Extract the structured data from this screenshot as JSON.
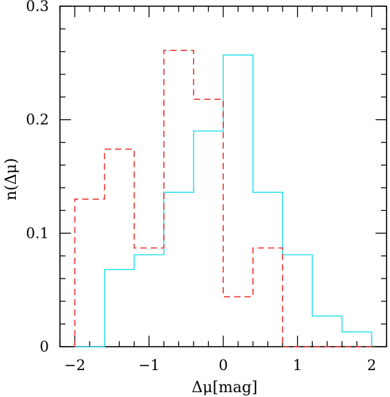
{
  "chart_data": {
    "type": "histogram",
    "xlabel": "Δμ[mag]",
    "ylabel": "n(Δμ)",
    "xlim": [
      -2.2,
      2.2
    ],
    "ylim": [
      0,
      0.3
    ],
    "x_ticks": [
      -2,
      -1,
      0,
      1,
      2
    ],
    "x_tick_labels": [
      "−2",
      "−1",
      "0",
      "1",
      "2"
    ],
    "y_ticks": [
      0,
      0.1,
      0.2,
      0.3
    ],
    "y_tick_labels": [
      "0",
      "0.1",
      "0.2",
      "0.3"
    ],
    "bin_edges": [
      -2.0,
      -1.6,
      -1.2,
      -0.8,
      -0.4,
      0.0,
      0.4,
      0.8,
      1.2,
      1.6,
      2.0
    ],
    "series": [
      {
        "style": "solid",
        "color": "#33e0ee",
        "values": [
          0,
          0.068,
          0.081,
          0.136,
          0.19,
          0.257,
          0.136,
          0.081,
          0.027,
          0.013
        ]
      },
      {
        "style": "dashed",
        "color": "#e8322e",
        "values": [
          0.13,
          0.174,
          0.087,
          0.261,
          0.218,
          0.044,
          0.087,
          0,
          0,
          0
        ]
      }
    ],
    "grid": false,
    "legend": "none"
  }
}
